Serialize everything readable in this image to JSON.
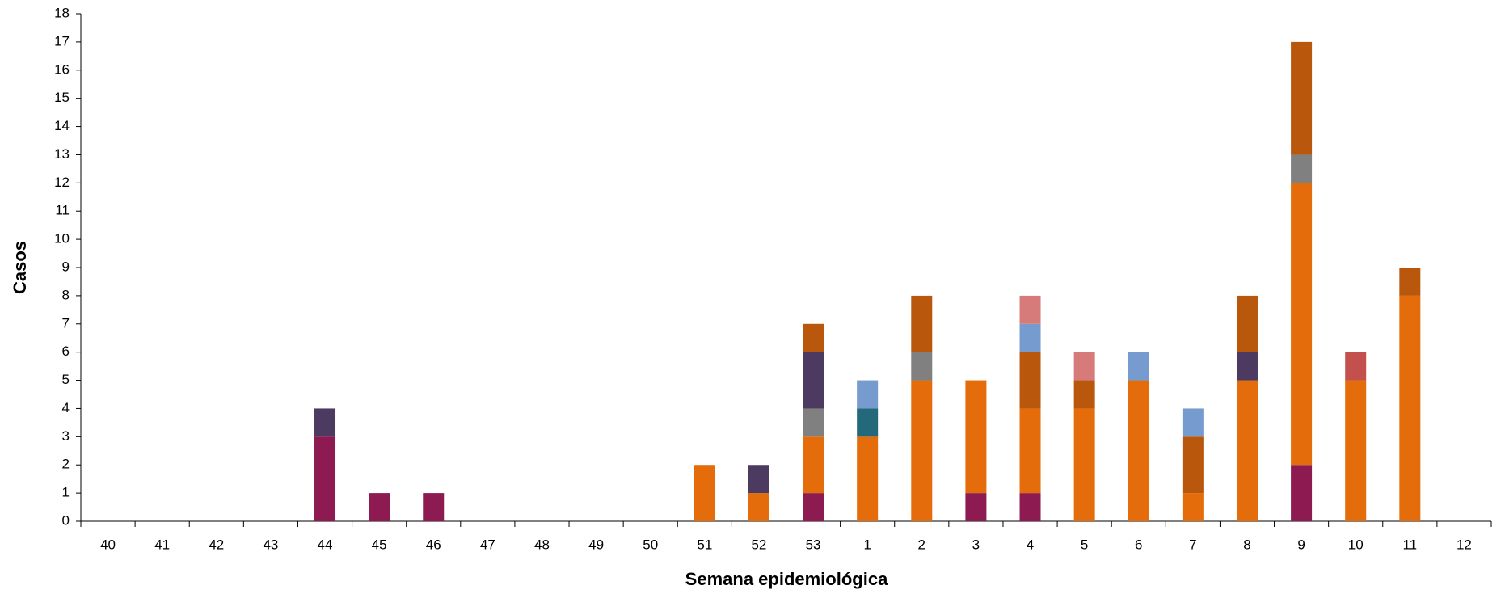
{
  "chart_data": {
    "type": "stacked_bar",
    "x_label": "Semana epidemiológica",
    "y_label": "Casos",
    "categories": [
      "40",
      "41",
      "42",
      "43",
      "44",
      "45",
      "46",
      "47",
      "48",
      "49",
      "50",
      "51",
      "52",
      "53",
      "1",
      "2",
      "3",
      "4",
      "5",
      "6",
      "7",
      "8",
      "9",
      "10",
      "11",
      "12"
    ],
    "series": [
      {
        "color": "#8e1a52",
        "values": [
          0,
          0,
          0,
          0,
          3,
          1,
          1,
          0,
          0,
          0,
          0,
          0,
          0,
          1,
          0,
          0,
          1,
          1,
          0,
          0,
          0,
          0,
          2,
          0,
          0,
          0
        ]
      },
      {
        "color": "#e46c0a",
        "values": [
          0,
          0,
          0,
          0,
          0,
          0,
          0,
          0,
          0,
          0,
          0,
          2,
          1,
          2,
          3,
          5,
          4,
          3,
          4,
          5,
          1,
          5,
          10,
          5,
          8,
          0
        ]
      },
      {
        "color": "#23697a",
        "values": [
          0,
          0,
          0,
          0,
          0,
          0,
          0,
          0,
          0,
          0,
          0,
          0,
          0,
          0,
          1,
          0,
          0,
          0,
          0,
          0,
          0,
          0,
          0,
          0,
          0,
          0
        ]
      },
      {
        "color": "#808080",
        "values": [
          0,
          0,
          0,
          0,
          0,
          0,
          0,
          0,
          0,
          0,
          0,
          0,
          0,
          1,
          0,
          1,
          0,
          0,
          0,
          0,
          0,
          0,
          1,
          0,
          0,
          0
        ]
      },
      {
        "color": "#4c3a61",
        "values": [
          0,
          0,
          0,
          0,
          1,
          0,
          0,
          0,
          0,
          0,
          0,
          0,
          1,
          2,
          0,
          0,
          0,
          0,
          0,
          0,
          0,
          1,
          0,
          0,
          0,
          0
        ]
      },
      {
        "color": "#b9570c",
        "values": [
          0,
          0,
          0,
          0,
          0,
          0,
          0,
          0,
          0,
          0,
          0,
          0,
          0,
          1,
          0,
          2,
          0,
          2,
          1,
          0,
          2,
          2,
          4,
          0,
          1,
          0
        ]
      },
      {
        "color": "#759bcf",
        "values": [
          0,
          0,
          0,
          0,
          0,
          0,
          0,
          0,
          0,
          0,
          0,
          0,
          0,
          0,
          1,
          0,
          0,
          1,
          0,
          1,
          1,
          0,
          0,
          0,
          0,
          0
        ]
      },
      {
        "color": "#d67a7a",
        "values": [
          0,
          0,
          0,
          0,
          0,
          0,
          0,
          0,
          0,
          0,
          0,
          0,
          0,
          0,
          0,
          0,
          0,
          1,
          1,
          0,
          0,
          0,
          0,
          0,
          0,
          0
        ]
      },
      {
        "color": "#c4504d",
        "values": [
          0,
          0,
          0,
          0,
          0,
          0,
          0,
          0,
          0,
          0,
          0,
          0,
          0,
          0,
          0,
          0,
          0,
          0,
          0,
          0,
          0,
          0,
          0,
          1,
          0,
          0
        ]
      }
    ],
    "ylim": [
      0,
      18
    ],
    "yticks": [
      0,
      1,
      2,
      3,
      4,
      5,
      6,
      7,
      8,
      9,
      10,
      11,
      12,
      13,
      14,
      15,
      16,
      17,
      18
    ],
    "grid": false
  }
}
